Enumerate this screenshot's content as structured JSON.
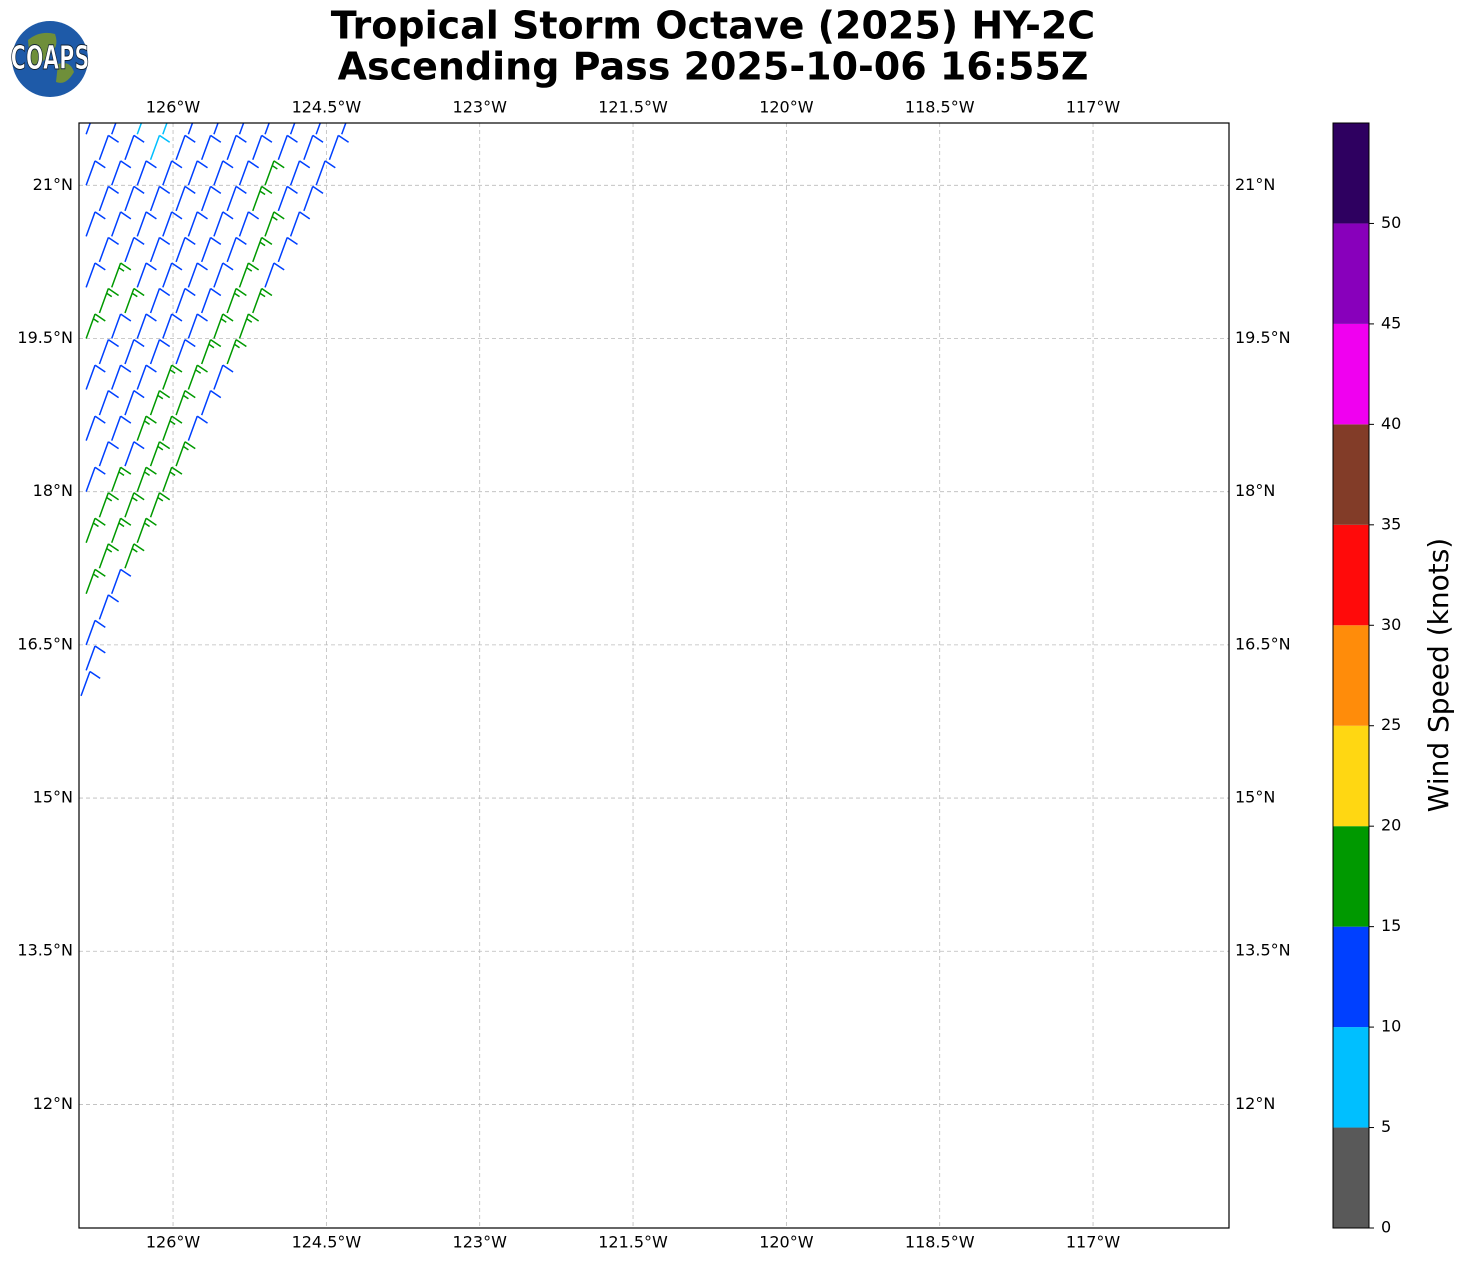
{
  "logo_text": "COAPS",
  "chart_data": {
    "type": "wind_barbs",
    "title": "Tropical Storm Octave (2025) HY-2C",
    "subtitle": "Ascending Pass 2025-10-06 16:55Z",
    "xlim": [
      126.92,
      115.67
    ],
    "ylim": [
      10.79,
      21.61
    ],
    "xticks": [
      {
        "value": 126,
        "label": "126°W"
      },
      {
        "value": 124.5,
        "label": "124.5°W"
      },
      {
        "value": 123,
        "label": "123°W"
      },
      {
        "value": 121.5,
        "label": "121.5°W"
      },
      {
        "value": 120,
        "label": "120°W"
      },
      {
        "value": 118.5,
        "label": "118.5°W"
      },
      {
        "value": 117,
        "label": "117°W"
      }
    ],
    "yticks": [
      {
        "value": 21,
        "label": "21°N"
      },
      {
        "value": 19.5,
        "label": "19.5°N"
      },
      {
        "value": 18,
        "label": "18°N"
      },
      {
        "value": 16.5,
        "label": "16.5°N"
      },
      {
        "value": 15,
        "label": "15°N"
      },
      {
        "value": 13.5,
        "label": "13.5°N"
      },
      {
        "value": 12,
        "label": "12°N"
      }
    ],
    "grid": true,
    "wind_from_deg": 20,
    "rows": [
      {
        "lat": 21.5,
        "lons": [
          126.85,
          126.6,
          126.35,
          126.1,
          125.85,
          125.6,
          125.35,
          125.1,
          124.85,
          124.6,
          124.35
        ],
        "speeds": [
          12,
          12,
          8,
          8,
          12,
          12,
          12,
          12,
          12,
          12,
          12
        ]
      },
      {
        "lat": 21.25,
        "lons": [
          126.72,
          126.47,
          126.22,
          125.97,
          125.72,
          125.47,
          125.22,
          124.97,
          124.72,
          124.47
        ],
        "speeds": [
          12,
          12,
          8,
          12,
          12,
          12,
          12,
          12,
          12,
          12
        ]
      },
      {
        "lat": 21.0,
        "lons": [
          126.85,
          126.6,
          126.35,
          126.1,
          125.85,
          125.6,
          125.35,
          125.1,
          124.85,
          124.6
        ],
        "speeds": [
          12,
          12,
          12,
          12,
          12,
          12,
          12,
          16,
          12,
          12
        ]
      },
      {
        "lat": 20.75,
        "lons": [
          126.72,
          126.47,
          126.22,
          125.97,
          125.72,
          125.47,
          125.22,
          124.97,
          124.72
        ],
        "speeds": [
          12,
          12,
          12,
          12,
          12,
          12,
          16,
          12,
          12
        ]
      },
      {
        "lat": 20.5,
        "lons": [
          126.85,
          126.6,
          126.35,
          126.1,
          125.85,
          125.6,
          125.35,
          125.1,
          124.85
        ],
        "speeds": [
          12,
          12,
          12,
          12,
          12,
          12,
          12,
          16,
          12
        ]
      },
      {
        "lat": 20.25,
        "lons": [
          126.72,
          126.47,
          126.22,
          125.97,
          125.72,
          125.47,
          125.22,
          124.97
        ],
        "speeds": [
          12,
          12,
          12,
          12,
          12,
          12,
          16,
          12
        ]
      },
      {
        "lat": 20.0,
        "lons": [
          126.85,
          126.6,
          126.35,
          126.1,
          125.85,
          125.6,
          125.35,
          125.1
        ],
        "speeds": [
          12,
          16,
          12,
          12,
          12,
          12,
          16,
          12
        ]
      },
      {
        "lat": 19.75,
        "lons": [
          126.72,
          126.47,
          126.22,
          125.97,
          125.72,
          125.47,
          125.22
        ],
        "speeds": [
          16,
          16,
          12,
          12,
          12,
          16,
          16
        ]
      },
      {
        "lat": 19.5,
        "lons": [
          126.85,
          126.6,
          126.35,
          126.1,
          125.85,
          125.6,
          125.35
        ],
        "speeds": [
          16,
          12,
          12,
          12,
          12,
          16,
          16
        ]
      },
      {
        "lat": 19.25,
        "lons": [
          126.72,
          126.47,
          126.22,
          125.97,
          125.72,
          125.47
        ],
        "speeds": [
          12,
          12,
          12,
          12,
          16,
          16
        ]
      },
      {
        "lat": 19.0,
        "lons": [
          126.85,
          126.6,
          126.35,
          126.1,
          125.85,
          125.6
        ],
        "speeds": [
          12,
          12,
          12,
          16,
          16,
          12
        ]
      },
      {
        "lat": 18.75,
        "lons": [
          126.72,
          126.47,
          126.22,
          125.97,
          125.72
        ],
        "speeds": [
          12,
          12,
          16,
          16,
          12
        ]
      },
      {
        "lat": 18.5,
        "lons": [
          126.85,
          126.6,
          126.35,
          126.1,
          125.85
        ],
        "speeds": [
          12,
          12,
          16,
          16,
          12
        ]
      },
      {
        "lat": 18.25,
        "lons": [
          126.72,
          126.47,
          126.22,
          125.97
        ],
        "speeds": [
          12,
          12,
          16,
          16
        ]
      },
      {
        "lat": 18.0,
        "lons": [
          126.85,
          126.6,
          126.35,
          126.1
        ],
        "speeds": [
          12,
          16,
          16,
          16
        ]
      },
      {
        "lat": 17.75,
        "lons": [
          126.72,
          126.47,
          126.22
        ],
        "speeds": [
          16,
          16,
          16
        ]
      },
      {
        "lat": 17.5,
        "lons": [
          126.85,
          126.6,
          126.35
        ],
        "speeds": [
          16,
          16,
          16
        ]
      },
      {
        "lat": 17.25,
        "lons": [
          126.72,
          126.47
        ],
        "speeds": [
          16,
          16
        ]
      },
      {
        "lat": 17.0,
        "lons": [
          126.85,
          126.6
        ],
        "speeds": [
          16,
          12
        ]
      },
      {
        "lat": 16.75,
        "lons": [
          126.72
        ],
        "speeds": [
          12
        ]
      },
      {
        "lat": 16.5,
        "lons": [
          126.85
        ],
        "speeds": [
          12
        ]
      },
      {
        "lat": 16.25,
        "lons": [
          126.85
        ],
        "speeds": [
          12
        ]
      },
      {
        "lat": 16.0,
        "lons": [
          126.9
        ],
        "speeds": [
          12
        ]
      }
    ],
    "colorbar": {
      "label": "Wind Speed (knots)",
      "lim": [
        0,
        55
      ],
      "ticks": [
        0,
        5,
        10,
        15,
        20,
        25,
        30,
        35,
        40,
        45,
        50
      ],
      "bins": [
        0,
        5,
        10,
        15,
        20,
        25,
        30,
        35,
        40,
        45,
        50,
        55
      ],
      "colors": [
        "#595959",
        "#00bfff",
        "#0040ff",
        "#009900",
        "#ffd712",
        "#ff8c0a",
        "#ff0a0a",
        "#823c28",
        "#f000f0",
        "#8800bb",
        "#2e0060"
      ]
    }
  }
}
